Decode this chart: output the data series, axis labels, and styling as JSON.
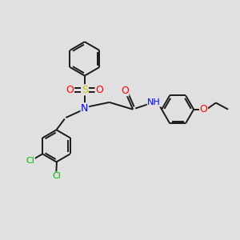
{
  "bg_color": "#e0e0e0",
  "bond_color": "#1a1a1a",
  "line_width": 1.4,
  "atom_colors": {
    "N": "#0000ff",
    "O": "#ff0000",
    "S": "#cccc00",
    "Cl": "#00bb00",
    "C": "#1a1a1a"
  },
  "figsize": [
    3.0,
    3.0
  ],
  "dpi": 100
}
